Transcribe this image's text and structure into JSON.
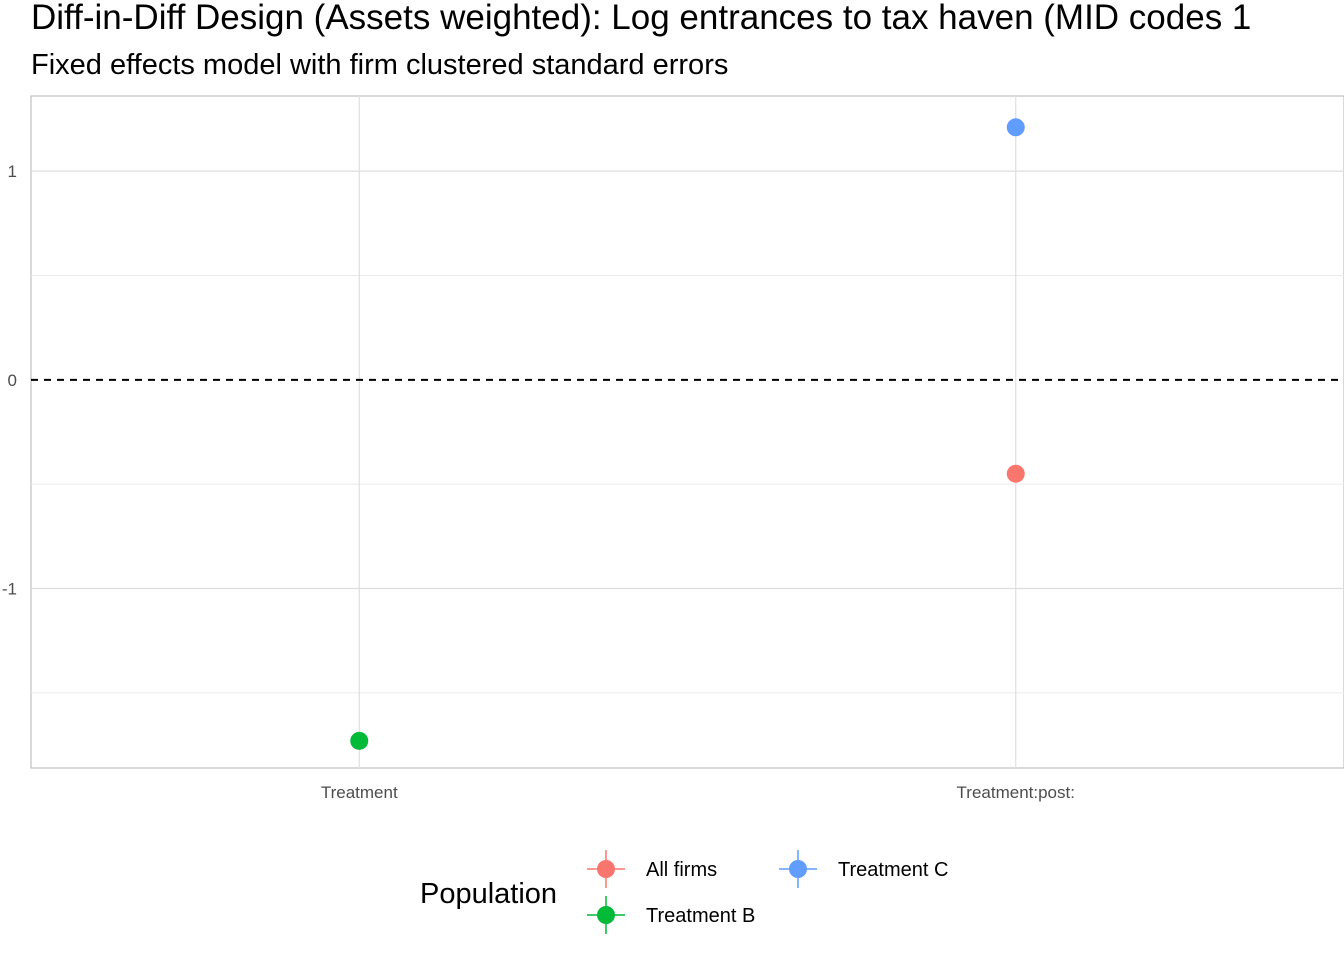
{
  "chart_data": {
    "type": "scatter",
    "title": "Diff-in-Diff Design (Assets weighted): Log entrances to tax haven (MID codes 1",
    "subtitle": "Fixed effects model with firm clustered standard errors",
    "xlabel": "",
    "ylabel": "",
    "categories": [
      "Treatment",
      "Treatment:post:"
    ],
    "ylim": [
      -1.86,
      1.36
    ],
    "y_ticks": [
      {
        "value": 1,
        "label": "1"
      },
      {
        "value": 0,
        "label": "0"
      },
      {
        "value": -1,
        "label": "-1"
      }
    ],
    "y_minor_ticks": [
      0.5,
      -0.5,
      -1.5
    ],
    "reference_line": {
      "y": 0,
      "style": "dashed"
    },
    "grid": true,
    "series": [
      {
        "name": "All firms",
        "color": "#F8766D",
        "points": [
          {
            "x": "Treatment:post:",
            "y": -0.45
          }
        ]
      },
      {
        "name": "Treatment B",
        "color": "#00BA38",
        "points": [
          {
            "x": "Treatment",
            "y": -1.73
          }
        ]
      },
      {
        "name": "Treatment C",
        "color": "#619CFF",
        "points": [
          {
            "x": "Treatment:post:",
            "y": 1.21
          }
        ]
      }
    ],
    "legend": {
      "title": "Population",
      "position": "bottom",
      "items": [
        "All firms",
        "Treatment C",
        "Treatment B"
      ]
    }
  }
}
